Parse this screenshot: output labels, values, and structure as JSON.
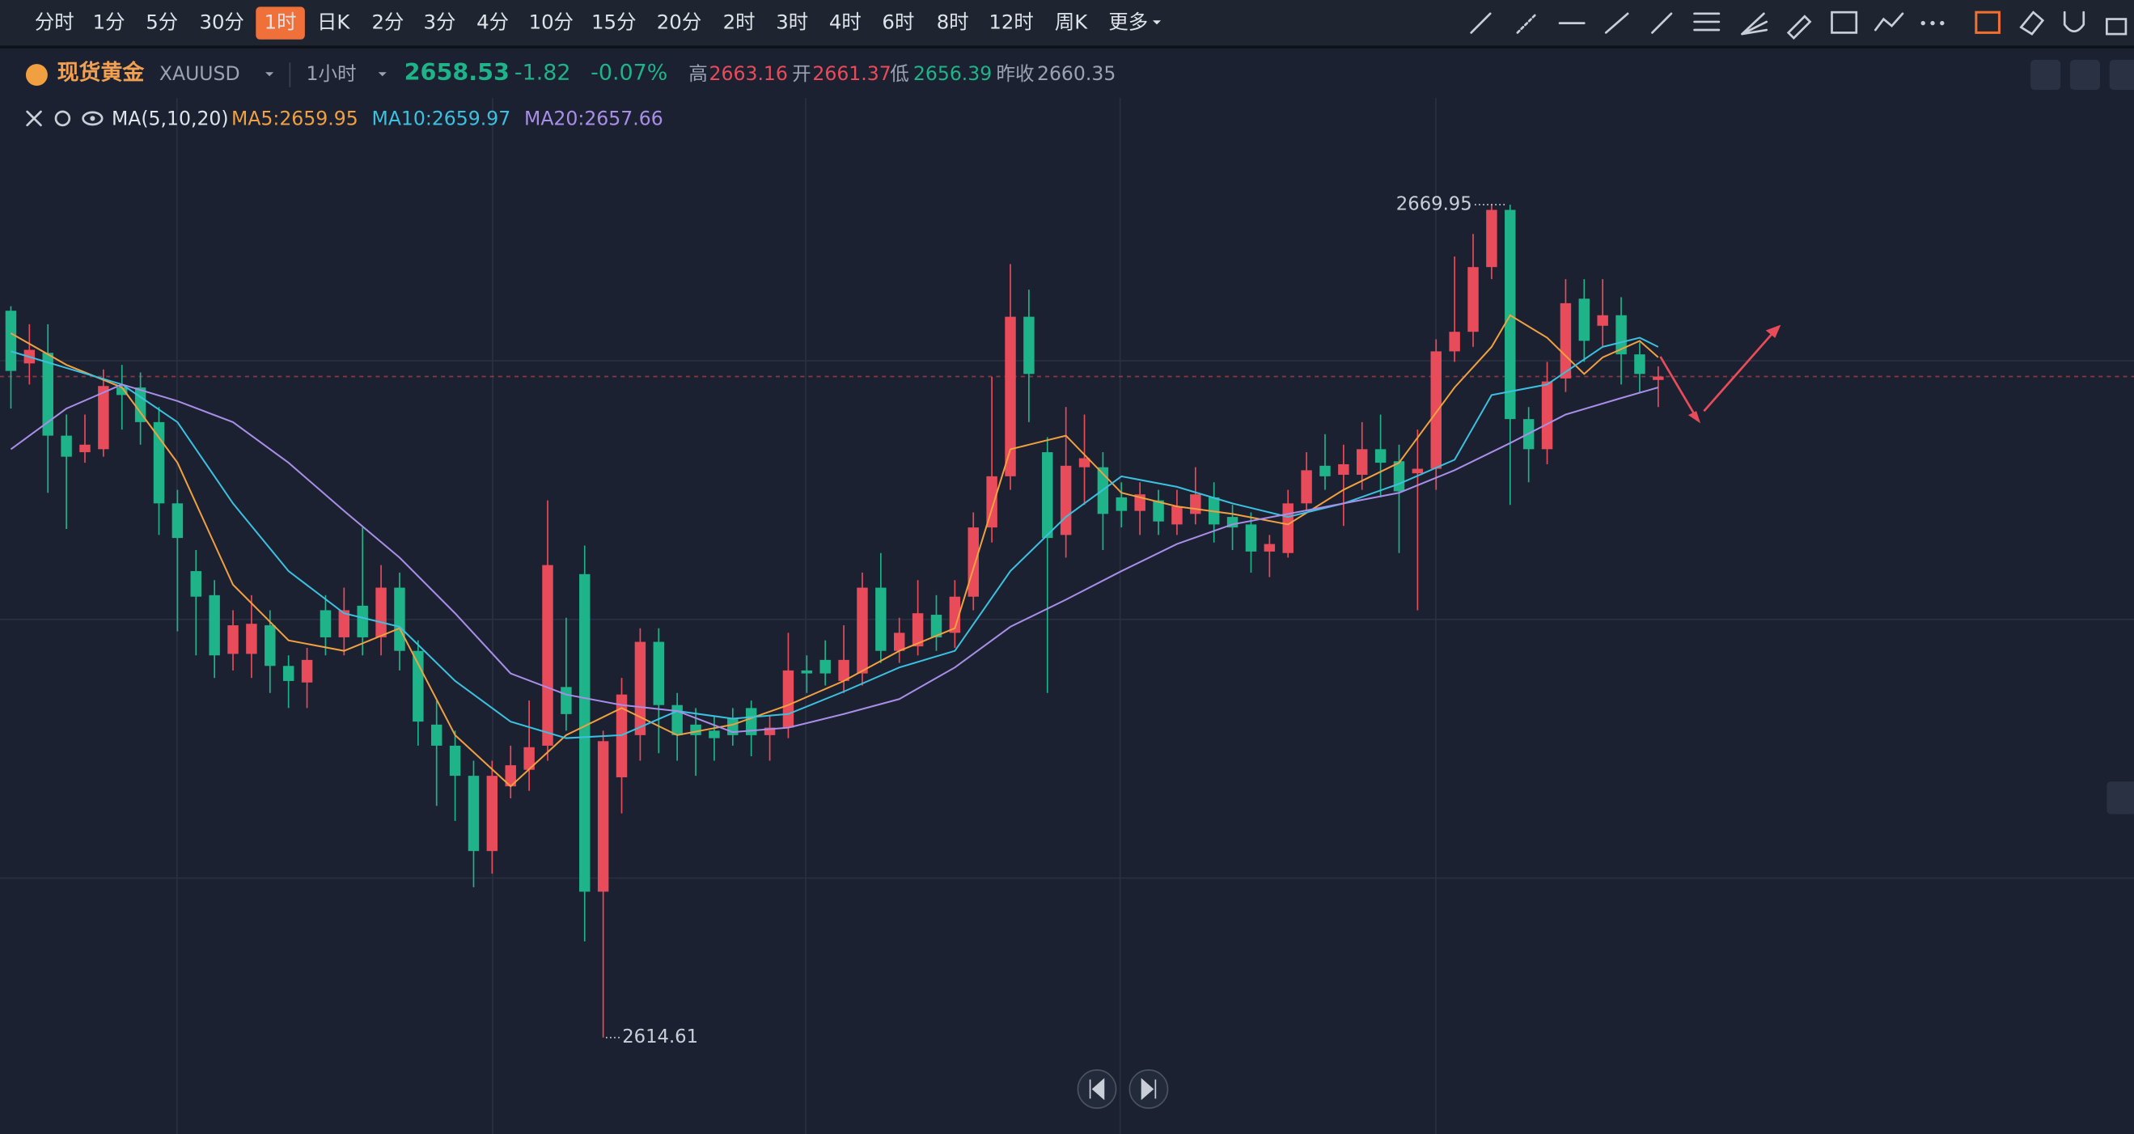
{
  "toolbar": {
    "intervals": [
      "分时",
      "1分",
      "5分",
      "30分",
      "1时",
      "日K",
      "2分",
      "3分",
      "4分",
      "10分",
      "15分",
      "20分",
      "2时",
      "3时",
      "4时",
      "6时",
      "8时",
      "12时",
      "周K",
      "更多"
    ],
    "active": 4
  },
  "header": {
    "name": "现货黄金",
    "code": "XAUUSD",
    "period": "1小时",
    "price": "2658.53",
    "change": "-1.82",
    "change_pct": "-0.07%",
    "high_label": "高",
    "high": "2663.16",
    "open_label": "开",
    "open": "2661.37",
    "low_label": "低",
    "low": "2656.39",
    "prev_label": "昨收",
    "prev": "2660.35"
  },
  "chart_data": {
    "type": "candlestick",
    "indicator": "MA(5,10,20)",
    "up_color": "#e84b5a",
    "down_color": "#1fb38a",
    "ylim": [
      2608.2,
      2674.5
    ],
    "last_price": 2658.53,
    "ohlc": [
      [
        2662.9,
        2663.2,
        2656.4,
        2658.9
      ],
      [
        2659.4,
        2662,
        2658,
        2660.3
      ],
      [
        2660.1,
        2662,
        2650.8,
        2654.6
      ],
      [
        2654.6,
        2656,
        2648.4,
        2653.2
      ],
      [
        2653.5,
        2656,
        2652.8,
        2654.0
      ],
      [
        2653.7,
        2659,
        2653.2,
        2657.9
      ],
      [
        2657.8,
        2659.3,
        2655,
        2657.3
      ],
      [
        2657.8,
        2658.8,
        2654,
        2655.5
      ],
      [
        2655.5,
        2656.5,
        2648,
        2650.1
      ],
      [
        2650.1,
        2651,
        2641.6,
        2647.8
      ],
      [
        2645.6,
        2647,
        2640,
        2643.9
      ],
      [
        2644,
        2645,
        2638.5,
        2640
      ],
      [
        2640.1,
        2643,
        2639,
        2642
      ],
      [
        2640.1,
        2644,
        2638.5,
        2642.1
      ],
      [
        2642,
        2643,
        2637.5,
        2639.3
      ],
      [
        2639.3,
        2640,
        2636.5,
        2638.3
      ],
      [
        2638.2,
        2640.5,
        2636.5,
        2639.7
      ],
      [
        2643.0,
        2644,
        2640,
        2641.2
      ],
      [
        2641.2,
        2644.5,
        2640,
        2643
      ],
      [
        2643.3,
        2648.5,
        2640,
        2641.2
      ],
      [
        2641.2,
        2646,
        2640,
        2644.5
      ],
      [
        2644.5,
        2645.5,
        2639,
        2640.3
      ],
      [
        2640.3,
        2641,
        2634,
        2635.6
      ],
      [
        2635.4,
        2637,
        2630,
        2634
      ],
      [
        2634,
        2635,
        2629,
        2632
      ],
      [
        2632,
        2633,
        2624.6,
        2627
      ],
      [
        2627,
        2633,
        2625.5,
        2632
      ],
      [
        2631.3,
        2634,
        2630.5,
        2632.7
      ],
      [
        2632.4,
        2637,
        2631,
        2633.9
      ],
      [
        2634,
        2650.3,
        2633,
        2646
      ],
      [
        2637.9,
        2642.5,
        2635,
        2636.1
      ],
      [
        2645.4,
        2647.3,
        2621,
        2624.3
      ],
      [
        2624.3,
        2635,
        2614.61,
        2634.3
      ],
      [
        2631.9,
        2638.5,
        2629.5,
        2637.4
      ],
      [
        2634.7,
        2641.8,
        2633,
        2640.9
      ],
      [
        2640.9,
        2641.8,
        2633.5,
        2636.7
      ],
      [
        2636.7,
        2637.5,
        2633,
        2634.7
      ],
      [
        2635.4,
        2636.5,
        2632,
        2634.7
      ],
      [
        2635,
        2636,
        2633,
        2634.5
      ],
      [
        2635.8,
        2636.5,
        2634,
        2634.7
      ],
      [
        2636.5,
        2637,
        2633.3,
        2634.7
      ],
      [
        2634.7,
        2636,
        2633,
        2635.2
      ],
      [
        2635.2,
        2641.5,
        2634.5,
        2639
      ],
      [
        2639,
        2640,
        2637.5,
        2638.8
      ],
      [
        2639.7,
        2641,
        2638,
        2638.8
      ],
      [
        2638.3,
        2642,
        2637.5,
        2639.7
      ],
      [
        2638.8,
        2645.5,
        2638,
        2644.5
      ],
      [
        2644.5,
        2646.8,
        2639.5,
        2640.3
      ],
      [
        2640.3,
        2642.5,
        2639.5,
        2641.5
      ],
      [
        2640.6,
        2645,
        2640,
        2642.8
      ],
      [
        2642.7,
        2644,
        2640.3,
        2641.2
      ],
      [
        2641.5,
        2645,
        2640.5,
        2643.9
      ],
      [
        2643.9,
        2649.5,
        2643,
        2648.5
      ],
      [
        2648.5,
        2658.5,
        2647.5,
        2651.9
      ],
      [
        2651.9,
        2666,
        2651,
        2662.5
      ],
      [
        2662.5,
        2664.3,
        2655.5,
        2658.7
      ],
      [
        2653.5,
        2654.5,
        2637.5,
        2647.8
      ],
      [
        2648,
        2656.5,
        2646.5,
        2652.6
      ],
      [
        2652.5,
        2656,
        2650,
        2653.1
      ],
      [
        2652.5,
        2653.5,
        2647,
        2649.4
      ],
      [
        2650.5,
        2651.5,
        2648.5,
        2649.6
      ],
      [
        2649.6,
        2651.5,
        2648,
        2650.7
      ],
      [
        2650.3,
        2651,
        2648,
        2648.9
      ],
      [
        2648.7,
        2651,
        2648,
        2649.9
      ],
      [
        2649.4,
        2652.5,
        2648.7,
        2650.7
      ],
      [
        2650.5,
        2651.5,
        2647.5,
        2648.7
      ],
      [
        2649.2,
        2650,
        2647,
        2648.5
      ],
      [
        2648.7,
        2649.5,
        2645.5,
        2646.9
      ],
      [
        2646.9,
        2648,
        2645.2,
        2647.4
      ],
      [
        2646.8,
        2651,
        2646.5,
        2650.1
      ],
      [
        2650.1,
        2653.5,
        2649.6,
        2652.3
      ],
      [
        2652.6,
        2654.7,
        2651,
        2651.9
      ],
      [
        2652,
        2654,
        2648.6,
        2652.7
      ],
      [
        2652,
        2655.5,
        2651,
        2653.7
      ],
      [
        2653.7,
        2656,
        2650.5,
        2652.8
      ],
      [
        2652.9,
        2654,
        2646.8,
        2650.9
      ],
      [
        2652.1,
        2655,
        2643,
        2652.4
      ],
      [
        2652.4,
        2661,
        2651,
        2660.2
      ],
      [
        2660.2,
        2666.5,
        2659.5,
        2661.5
      ],
      [
        2661.5,
        2668,
        2660.5,
        2665.8
      ],
      [
        2665.8,
        2670,
        2665,
        2669.6
      ],
      [
        2669.6,
        2669.95,
        2650,
        2655.7
      ],
      [
        2655.7,
        2656.5,
        2651.5,
        2653.7
      ],
      [
        2653.7,
        2659.5,
        2652.7,
        2658.2
      ],
      [
        2658.4,
        2665,
        2657.5,
        2663.4
      ],
      [
        2663.7,
        2665,
        2659.5,
        2660.9
      ],
      [
        2661.9,
        2665,
        2660.5,
        2662.6
      ],
      [
        2662.6,
        2663.8,
        2658,
        2660.0
      ],
      [
        2660.0,
        2660.8,
        2657.5,
        2658.7
      ],
      [
        2658.3,
        2659.2,
        2656.5,
        2658.53
      ]
    ],
    "series": [
      {
        "name": "MA5:2659.95",
        "color": "#f0a040",
        "x": [
          0,
          3,
          6,
          9,
          12,
          15,
          18,
          21,
          24,
          27,
          30,
          33,
          36,
          39,
          42,
          45,
          48,
          51,
          54,
          57,
          60,
          63,
          66,
          69,
          72,
          75,
          78,
          80,
          81,
          83,
          85,
          86,
          88,
          89
        ],
        "values": [
          2661.4,
          2659.3,
          2657.8,
          2652.8,
          2644.7,
          2641.0,
          2640.3,
          2641.8,
          2634.7,
          2631.3,
          2634.7,
          2636.5,
          2634.7,
          2635.4,
          2636.7,
          2638.3,
          2640.3,
          2641.8,
          2653.7,
          2654.6,
          2650.8,
          2649.9,
          2649.4,
          2648.7,
          2651.0,
          2652.8,
          2657.8,
          2660.5,
          2662.6,
          2661.1,
          2658.7,
          2659.8,
          2660.9,
          2659.8
        ]
      },
      {
        "name": "MA10:2659.97",
        "color": "#3cc0e0",
        "x": [
          0,
          3,
          6,
          9,
          12,
          15,
          18,
          21,
          24,
          27,
          30,
          33,
          36,
          39,
          42,
          45,
          48,
          51,
          54,
          57,
          60,
          63,
          66,
          69,
          72,
          75,
          78,
          80,
          83,
          86,
          88,
          89
        ],
        "values": [
          2660.2,
          2659.1,
          2658.0,
          2655.5,
          2650.1,
          2645.6,
          2642.8,
          2641.9,
          2638.3,
          2635.6,
          2634.5,
          2634.7,
          2636.3,
          2635.8,
          2636.1,
          2637.6,
          2639.2,
          2640.3,
          2645.6,
          2649.2,
          2651.9,
          2651.2,
          2650.1,
          2649.2,
          2650.1,
          2651.4,
          2653.0,
          2657.3,
          2658.0,
          2660.5,
          2661.1,
          2660.5
        ]
      },
      {
        "name": "MA20:2657.66",
        "color": "#a98ee8",
        "x": [
          0,
          3,
          6,
          9,
          12,
          15,
          18,
          21,
          24,
          27,
          30,
          33,
          36,
          39,
          42,
          45,
          48,
          51,
          54,
          57,
          60,
          63,
          66,
          69,
          72,
          75,
          78,
          81,
          84,
          87,
          89
        ],
        "values": [
          2653.7,
          2656.4,
          2658.0,
          2656.9,
          2655.5,
          2652.8,
          2649.6,
          2646.5,
          2642.8,
          2638.8,
          2637.4,
          2636.7,
          2636.3,
          2634.9,
          2635.2,
          2636.1,
          2637.1,
          2639.2,
          2641.9,
          2643.7,
          2645.6,
          2647.4,
          2648.7,
          2649.4,
          2650.1,
          2650.8,
          2652.3,
          2654.1,
          2656.0,
          2657.1,
          2657.8
        ]
      }
    ],
    "annotations": [
      {
        "x": 81,
        "value": 2669.95,
        "label": "2669.95"
      },
      {
        "x": 32,
        "value": 2614.61,
        "label": "2614.61"
      }
    ]
  }
}
